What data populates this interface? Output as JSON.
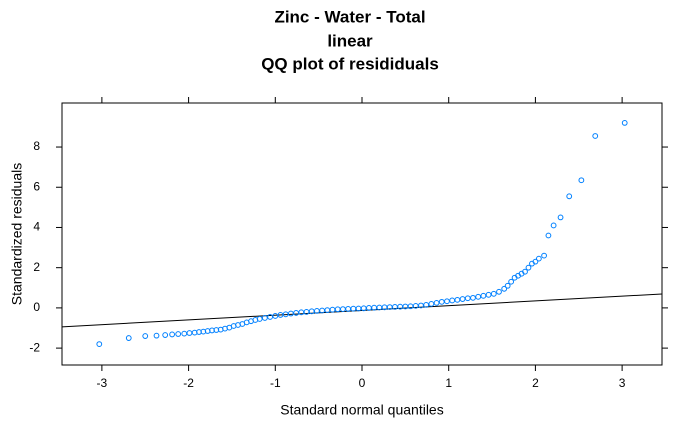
{
  "chart_data": {
    "type": "scatter",
    "title": [
      "Zinc - Water - Total",
      "linear",
      "QQ plot of resididuals"
    ],
    "xlabel": "Standard normal quantiles",
    "ylabel": "Standardized residuals",
    "xlim": [
      -3.46,
      3.46
    ],
    "xticks": [
      -3,
      -2,
      -1,
      0,
      1,
      2,
      3
    ],
    "ylim": [
      -2.84,
      10.19
    ],
    "yticks": [
      -2,
      0,
      2,
      4,
      6,
      8
    ],
    "color": "#0080ff",
    "reference_line": {
      "intercept": -0.125,
      "slope": 0.236,
      "color": "#000000"
    },
    "x": [
      -3.03,
      -2.69,
      -2.5,
      -2.37,
      -2.27,
      -2.19,
      -2.12,
      -2.05,
      -1.99,
      -1.93,
      -1.88,
      -1.83,
      -1.78,
      -1.73,
      -1.68,
      -1.63,
      -1.58,
      -1.53,
      -1.48,
      -1.43,
      -1.38,
      -1.33,
      -1.28,
      -1.23,
      -1.18,
      -1.12,
      -1.06,
      -1.0,
      -0.94,
      -0.88,
      -0.82,
      -0.76,
      -0.7,
      -0.64,
      -0.58,
      -0.52,
      -0.46,
      -0.4,
      -0.34,
      -0.28,
      -0.22,
      -0.16,
      -0.1,
      -0.04,
      0.02,
      0.08,
      0.14,
      0.2,
      0.26,
      0.32,
      0.38,
      0.44,
      0.5,
      0.56,
      0.62,
      0.68,
      0.74,
      0.8,
      0.86,
      0.92,
      0.98,
      1.04,
      1.1,
      1.16,
      1.22,
      1.28,
      1.34,
      1.4,
      1.46,
      1.52,
      1.58,
      1.64,
      1.68,
      1.72,
      1.76,
      1.8,
      1.84,
      1.88,
      1.92,
      1.96,
      2.0,
      2.04,
      2.1,
      2.15,
      2.21,
      2.29,
      2.39,
      2.53,
      2.69,
      3.03
    ],
    "values": [
      -1.8,
      -1.5,
      -1.4,
      -1.38,
      -1.35,
      -1.32,
      -1.3,
      -1.28,
      -1.25,
      -1.23,
      -1.2,
      -1.18,
      -1.15,
      -1.12,
      -1.1,
      -1.08,
      -1.03,
      -0.98,
      -0.9,
      -0.85,
      -0.8,
      -0.72,
      -0.66,
      -0.6,
      -0.55,
      -0.5,
      -0.45,
      -0.4,
      -0.35,
      -0.32,
      -0.28,
      -0.25,
      -0.22,
      -0.2,
      -0.17,
      -0.15,
      -0.13,
      -0.11,
      -0.09,
      -0.07,
      -0.06,
      -0.05,
      -0.04,
      -0.03,
      -0.02,
      0,
      0.01,
      0.02,
      0.03,
      0.04,
      0.05,
      0.06,
      0.07,
      0.08,
      0.1,
      0.12,
      0.15,
      0.2,
      0.25,
      0.3,
      0.33,
      0.37,
      0.4,
      0.44,
      0.48,
      0.5,
      0.55,
      0.6,
      0.65,
      0.7,
      0.8,
      0.95,
      1.1,
      1.3,
      1.5,
      1.6,
      1.7,
      1.8,
      2.0,
      2.2,
      2.3,
      2.45,
      2.6,
      3.6,
      4.1,
      4.5,
      5.55,
      6.35,
      8.55,
      9.2
    ]
  }
}
